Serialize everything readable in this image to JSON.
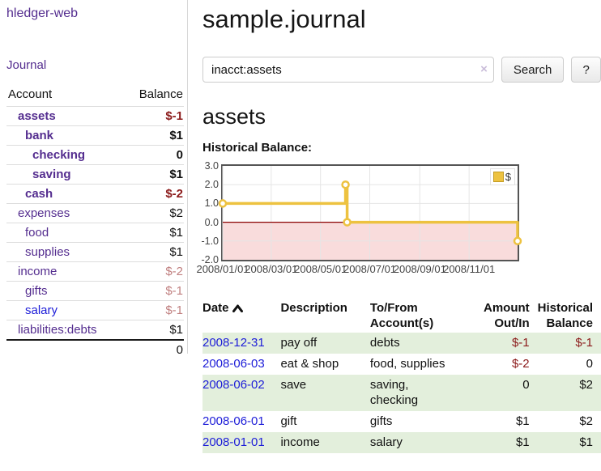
{
  "colors": {
    "link_purple": "#542d8f",
    "link_blue": "#1d1dd8",
    "negative_strong": "#8b1a1a",
    "negative_soft": "#c07f7f",
    "stripe_green": "#e3efdc",
    "chart_line_gold": "#edc240",
    "chart_negative_fill": "#f9dcdc",
    "chart_zero_line": "#8b0000",
    "chart_grid": "#e5e5e5",
    "chart_border": "#545454"
  },
  "sidebar": {
    "brand": "hledger-web",
    "journal_link": "Journal",
    "accounts_table": {
      "headers": {
        "account": "Account",
        "balance": "Balance"
      },
      "rows": [
        {
          "name": "assets",
          "depth": 1,
          "balance": "$-1",
          "bold": true,
          "neg": "strong",
          "unvisited": false
        },
        {
          "name": "bank",
          "depth": 2,
          "balance": "$1",
          "bold": true,
          "neg": "none",
          "unvisited": false
        },
        {
          "name": "checking",
          "depth": 3,
          "balance": "0",
          "bold": true,
          "neg": "none",
          "unvisited": false
        },
        {
          "name": "saving",
          "depth": 3,
          "balance": "$1",
          "bold": true,
          "neg": "none",
          "unvisited": false
        },
        {
          "name": "cash",
          "depth": 2,
          "balance": "$-2",
          "bold": true,
          "neg": "strong",
          "unvisited": false
        },
        {
          "name": "expenses",
          "depth": 1,
          "balance": "$2",
          "bold": false,
          "neg": "none",
          "unvisited": false
        },
        {
          "name": "food",
          "depth": 2,
          "balance": "$1",
          "bold": false,
          "neg": "none",
          "unvisited": false
        },
        {
          "name": "supplies",
          "depth": 2,
          "balance": "$1",
          "bold": false,
          "neg": "none",
          "unvisited": false
        },
        {
          "name": "income",
          "depth": 1,
          "balance": "$-2",
          "bold": false,
          "neg": "soft",
          "unvisited": false
        },
        {
          "name": "gifts",
          "depth": 2,
          "balance": "$-1",
          "bold": false,
          "neg": "soft",
          "unvisited": false
        },
        {
          "name": "salary",
          "depth": 2,
          "balance": "$-1",
          "bold": false,
          "neg": "soft",
          "unvisited": true
        },
        {
          "name": "liabilities:debts",
          "depth": 1,
          "balance": "$1",
          "bold": false,
          "neg": "none",
          "unvisited": false
        }
      ],
      "total": "0"
    }
  },
  "header": {
    "title": "sample.journal"
  },
  "search": {
    "value": "inacct:assets",
    "clear_icon": "×",
    "button_label": "Search",
    "help_label": "?"
  },
  "account_page": {
    "heading": "assets",
    "chart_title": "Historical Balance:"
  },
  "chart_data": {
    "type": "line",
    "step": true,
    "title": "Historical Balance:",
    "series": [
      {
        "name": "$",
        "color": "#edc240",
        "points": [
          [
            "2008-01-01",
            1
          ],
          [
            "2008-06-01",
            2
          ],
          [
            "2008-06-03",
            0
          ],
          [
            "2008-12-31",
            -1
          ]
        ]
      }
    ],
    "xlim": [
      "2008-01-01",
      "2008-12-31"
    ],
    "ylim": [
      -2,
      3
    ],
    "y_ticks": [
      "3.0",
      "2.0",
      "1.0",
      "0.0",
      "-1.0",
      "-2.0"
    ],
    "x_ticks": [
      "2008/01/01",
      "2008/03/01",
      "2008/05/01",
      "2008/07/01",
      "2008/09/01",
      "2008/11/01"
    ],
    "legend": {
      "label": "$",
      "position": "top-right"
    },
    "grid": true,
    "negative_region_fill": "#f9dcdc",
    "zero_line_color": "#8b0000"
  },
  "register_table": {
    "headers": {
      "date": "Date",
      "description": "Description",
      "tofrom": "To/From Account(s)",
      "amount": "Amount Out/In",
      "historical": "Historical Balance"
    },
    "rows": [
      {
        "date": "2008-12-31",
        "description": "pay off",
        "tofrom": "debts",
        "amount": "$-1",
        "amount_neg": true,
        "historical": "$-1",
        "historical_neg": true
      },
      {
        "date": "2008-06-03",
        "description": "eat & shop",
        "tofrom": "food, supplies",
        "amount": "$-2",
        "amount_neg": true,
        "historical": "0",
        "historical_neg": false
      },
      {
        "date": "2008-06-02",
        "description": "save",
        "tofrom": "saving, checking",
        "amount": "0",
        "amount_neg": false,
        "historical": "$2",
        "historical_neg": false
      },
      {
        "date": "2008-06-01",
        "description": "gift",
        "tofrom": "gifts",
        "amount": "$1",
        "amount_neg": false,
        "historical": "$2",
        "historical_neg": false
      },
      {
        "date": "2008-01-01",
        "description": "income",
        "tofrom": "salary",
        "amount": "$1",
        "amount_neg": false,
        "historical": "$1",
        "historical_neg": false
      }
    ]
  }
}
